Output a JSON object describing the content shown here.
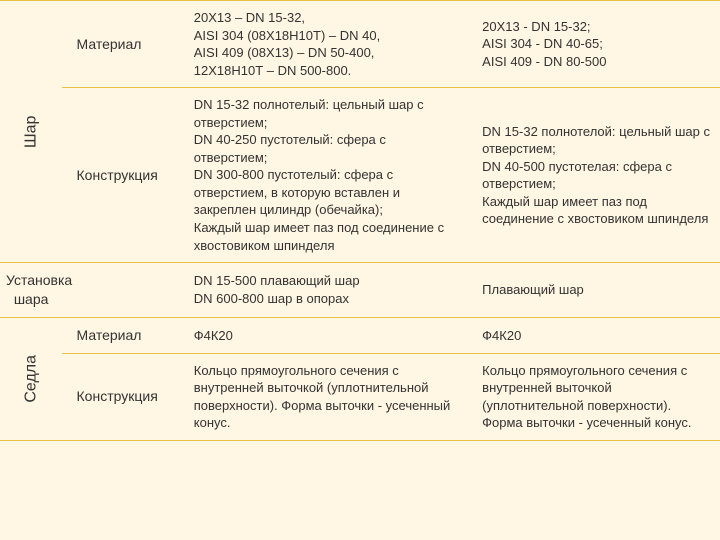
{
  "rows": [
    {
      "group": "Шар",
      "param": "Материал",
      "colA": "20Х13 – DN 15-32,\nAISI 304 (08Х18Н10Т) – DN 40,\nAISI 409 (08Х13) – DN 50-400,\n12Х18Н10Т – DN 500-800.",
      "colB": "20Х13 - DN 15-32;\nAISI 304 - DN 40-65;\nAISI 409 - DN 80-500"
    },
    {
      "param": "Конструкция",
      "colA": "DN 15-32 полнотелый: цельный шар с отверстием;\nDN 40-250 пустотелый: сфера с отверстием;\nDN 300-800 пустотелый: сфера с отверстием, в которую вставлен и закреплен цилиндр (обечайка);\nКаждый шар имеет паз под соединение с хвостовиком шпинделя",
      "colB": "DN 15-32 полнотелой: цельный шар с отверстием;\nDN 40-500 пустотелая: сфера с отверстием;\nКаждый шар имеет паз под соединение с хвостовиком шпинделя"
    },
    {
      "group": "Установка шара",
      "param": "",
      "colA": "DN 15-500 плавающий шар\nDN 600-800 шар в опорах",
      "colB": "Плавающий шар"
    },
    {
      "group": "Седла",
      "param": "Материал",
      "colA": "Ф4К20",
      "colB": "Ф4К20"
    },
    {
      "param": "Конструкция",
      "colA": "Кольцо прямоугольного сечения с внутренней выточкой (уплотнительной поверхности). Форма выточки - усеченный конус.",
      "colB": "Кольцо прямоугольного сечения с внутренней выточкой (уплотнительной поверхности). Форма выточки - усеченный конус."
    }
  ],
  "colors": {
    "bg": "#fff6e3",
    "border": "#e5c14a",
    "text": "#333333"
  }
}
